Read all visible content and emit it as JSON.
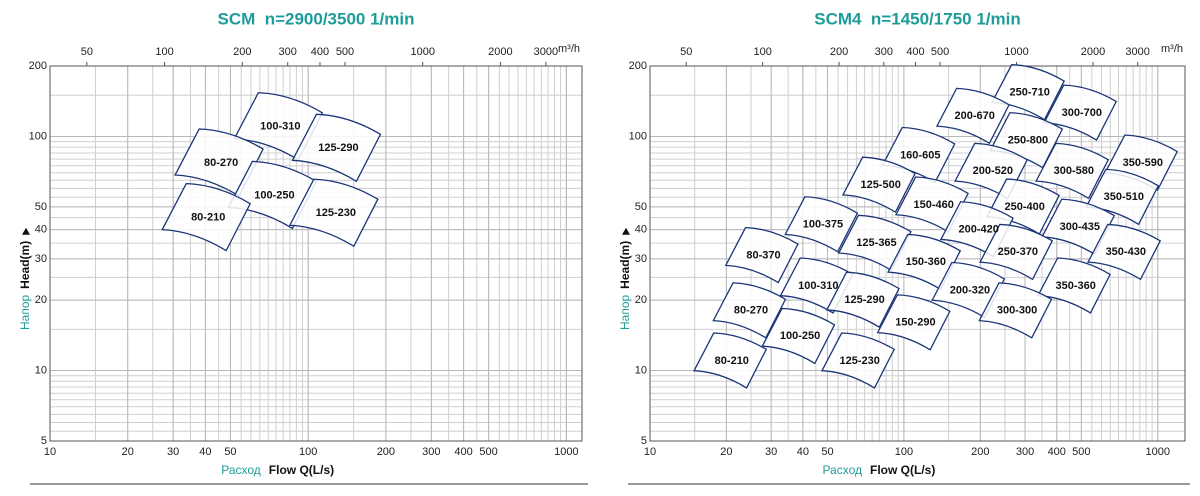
{
  "chart_data": [
    {
      "type": "tile",
      "title": "SCM  n=2900/3500 1/min",
      "xlabel_prefix": "Расход",
      "xlabel": "Flow Q(L/s)",
      "ylabel_prefix": "Напор",
      "ylabel": "Head(m)",
      "x2label": "m³/h",
      "log_x": true,
      "log_y": true,
      "grid": true,
      "color": "#1b3577",
      "xlim": [
        10,
        1150
      ],
      "xticks": [
        10,
        20,
        30,
        40,
        50,
        100,
        200,
        300,
        400,
        500,
        1000
      ],
      "x2lim": [
        36,
        4140
      ],
      "x2ticks": [
        50,
        100,
        200,
        300,
        400,
        500,
        1000,
        2000,
        3000
      ],
      "ylim": [
        5,
        200
      ],
      "yticks": [
        5,
        10,
        20,
        30,
        40,
        50,
        100,
        200
      ],
      "labels": [
        "100-310",
        "80-270",
        "125-290",
        "100-250",
        "80-210",
        "125-230"
      ],
      "x": [
        78,
        46,
        131,
        74,
        41,
        128
      ],
      "values": [
        110,
        77,
        89,
        56,
        45,
        47
      ]
    },
    {
      "type": "tile",
      "title": "SCM4  n=1450/1750 1/min",
      "xlabel_prefix": "Расход",
      "xlabel": "Flow Q(L/s)",
      "ylabel_prefix": "Напор",
      "ylabel": "Head(m)",
      "x2label": "m³/h",
      "log_x": true,
      "log_y": true,
      "grid": true,
      "color": "#1b3577",
      "xlim": [
        10,
        1280
      ],
      "xticks": [
        10,
        20,
        30,
        40,
        50,
        100,
        200,
        300,
        400,
        500,
        1000
      ],
      "x2lim": [
        36,
        4608
      ],
      "x2ticks": [
        50,
        100,
        200,
        300,
        400,
        500,
        1000,
        2000,
        3000
      ],
      "ylim": [
        5,
        200
      ],
      "yticks": [
        5,
        10,
        20,
        30,
        40,
        50,
        100,
        200
      ],
      "labels": [
        "250-710",
        "200-670",
        "300-700",
        "250-800",
        "160-605",
        "200-520",
        "300-580",
        "350-590",
        "125-500",
        "350-510",
        "150-460",
        "250-400",
        "100-375",
        "300-435",
        "200-420",
        "125-365",
        "250-370",
        "350-430",
        "80-370",
        "150-360",
        "100-310",
        "350-360",
        "200-320",
        "125-290",
        "80-270",
        "300-300",
        "150-290",
        "100-250",
        "80-210",
        "125-230"
      ],
      "x": [
        313,
        190,
        502,
        308,
        116,
        224,
        467,
        873,
        81,
        735,
        131,
        299,
        48,
        493,
        197,
        78,
        281,
        748,
        28,
        122,
        46,
        475,
        182,
        70,
        25,
        279,
        111,
        39,
        21,
        67
      ],
      "values": [
        154,
        122,
        126,
        96,
        83,
        71,
        71,
        77,
        62,
        55,
        51,
        50,
        42,
        41,
        40,
        35,
        32,
        32,
        31,
        29,
        23,
        23,
        22,
        20,
        18,
        18,
        16,
        14,
        11,
        11
      ]
    }
  ]
}
